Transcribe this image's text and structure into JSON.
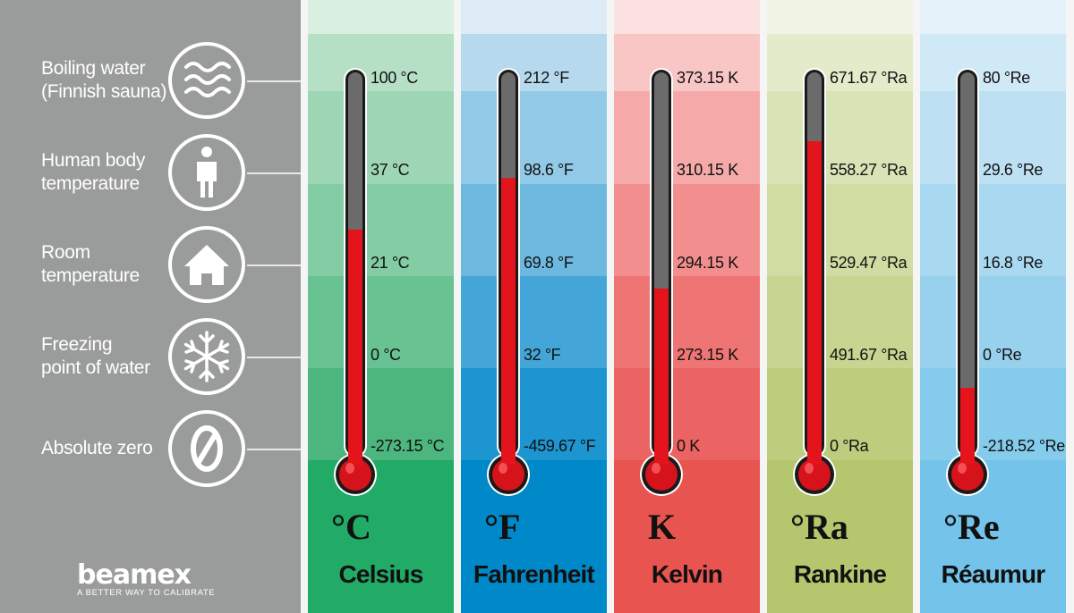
{
  "brand": {
    "logo_text": "beamex",
    "tagline": "A BETTER WAY TO CALIBRATE"
  },
  "reference_points": [
    {
      "label": "Boiling water\n(Finnish sauna)",
      "icon": "waves-icon"
    },
    {
      "label": "Human body\ntemperature",
      "icon": "person-icon"
    },
    {
      "label": "Room\ntemperature",
      "icon": "house-icon"
    },
    {
      "label": "Freezing\npoint of water",
      "icon": "snowflake-icon"
    },
    {
      "label": "Absolute zero",
      "icon": "zero-icon"
    }
  ],
  "scales": [
    {
      "name": "Celsius",
      "symbol": "°C",
      "ticks": [
        "100 °C",
        "37 °C",
        "21 °C",
        "0 °C",
        "-273.15 °C"
      ],
      "fill_level": 0.59,
      "band_colors": [
        "#d9efe1",
        "#b5e0c6",
        "#9dd6b5",
        "#84cca3",
        "#68c291",
        "#4db67e",
        "#22aa67"
      ]
    },
    {
      "name": "Fahrenheit",
      "symbol": "°F",
      "ticks": [
        "212 °F",
        "98.6 °F",
        "69.8 °F",
        "32 °F",
        "-459.67 °F"
      ],
      "fill_level": 0.73,
      "band_colors": [
        "#dcebf5",
        "#b6d9ee",
        "#91c9e6",
        "#6cb8df",
        "#44a6d8",
        "#1c95d0",
        "#0089c9"
      ]
    },
    {
      "name": "Kelvin",
      "symbol": "K",
      "ticks": [
        "373.15 K",
        "310.15 K",
        "294.15 K",
        "273.15 K",
        "0 K"
      ],
      "fill_level": 0.43,
      "band_colors": [
        "#fbe2e1",
        "#f8c6c5",
        "#f5aaa9",
        "#f28f8e",
        "#ee7574",
        "#eb6362",
        "#e8544f"
      ]
    },
    {
      "name": "Rankine",
      "symbol": "°Ra",
      "ticks": [
        "671.67 °Ra",
        "558.27 °Ra",
        "529.47 °Ra",
        "491.67 °Ra",
        "0 °Ra"
      ],
      "fill_level": 0.83,
      "band_colors": [
        "#f1f4e5",
        "#e4ebcb",
        "#d9e4b6",
        "#cfdca2",
        "#c6d590",
        "#bccd7e",
        "#b4c66e"
      ]
    },
    {
      "name": "Réaumur",
      "symbol": "°Re",
      "ticks": [
        "80 °Re",
        "29.6 °Re",
        "16.8 °Re",
        "0 °Re",
        "-218.52 °Re"
      ],
      "fill_level": 0.16,
      "band_colors": [
        "#e6f2fa",
        "#d0e9f6",
        "#bde1f3",
        "#a9d9f0",
        "#97d1ee",
        "#85cbec",
        "#73c3ea"
      ]
    }
  ]
}
